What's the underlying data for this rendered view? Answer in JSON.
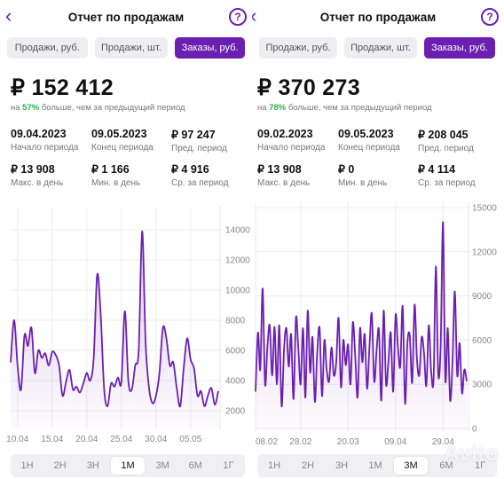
{
  "panels": [
    {
      "title": "Отчет по продажам",
      "back_icon": "chevron-left-icon",
      "help_icon": "question-circle-icon",
      "help_glyph": "?",
      "tabs": [
        {
          "label": "Продажи, руб.",
          "active": false
        },
        {
          "label": "Продажи, шт.",
          "active": false
        },
        {
          "label": "Заказы, руб.",
          "active": true
        }
      ],
      "total": "₽ 152 412",
      "compare_prefix": "на ",
      "compare_pct": "57%",
      "compare_suffix": " больше, чем за предыдущий период",
      "stats": [
        {
          "value": "09.04.2023",
          "label": "Начало периода"
        },
        {
          "value": "09.05.2023",
          "label": "Конец периода"
        },
        {
          "value": "₽  97 247",
          "label": "Пред. период"
        },
        {
          "value": "₽ 13 908",
          "label": "Макс. в день"
        },
        {
          "value": "₽ 1 166",
          "label": "Мин. в день"
        },
        {
          "value": "₽ 4 916",
          "label": "Ср. за период"
        }
      ],
      "periods": [
        {
          "label": "1Н",
          "active": false
        },
        {
          "label": "2Н",
          "active": false
        },
        {
          "label": "3Н",
          "active": false
        },
        {
          "label": "1М",
          "active": true
        },
        {
          "label": "3М",
          "active": false
        },
        {
          "label": "6М",
          "active": false
        },
        {
          "label": "1Г",
          "active": false
        }
      ]
    },
    {
      "title": "Отчет по продажам",
      "back_icon": "chevron-left-icon",
      "help_icon": "question-circle-icon",
      "help_glyph": "?",
      "tabs": [
        {
          "label": "Продажи, руб.",
          "active": false
        },
        {
          "label": "Продажи, шт.",
          "active": false
        },
        {
          "label": "Заказы, руб.",
          "active": true
        }
      ],
      "total": "₽ 370 273",
      "compare_prefix": "на ",
      "compare_pct": "78%",
      "compare_suffix": " больше, чем за предыдущий период",
      "stats": [
        {
          "value": "09.02.2023",
          "label": "Начало периода"
        },
        {
          "value": "09.05.2023",
          "label": "Конец периода"
        },
        {
          "value": "₽  208 045",
          "label": "Пред. период"
        },
        {
          "value": "₽ 13 908",
          "label": "Макс. в день"
        },
        {
          "value": "₽ 0",
          "label": "Мин. в день"
        },
        {
          "value": "₽ 4 114",
          "label": "Ср. за период"
        }
      ],
      "periods": [
        {
          "label": "1Н",
          "active": false
        },
        {
          "label": "2Н",
          "active": false
        },
        {
          "label": "3Н",
          "active": false
        },
        {
          "label": "1М",
          "active": false
        },
        {
          "label": "3М",
          "active": true
        },
        {
          "label": "6М",
          "active": false
        },
        {
          "label": "1Г",
          "active": false
        }
      ]
    }
  ],
  "watermark": "Avito",
  "colors": {
    "accent": "#6b1fb1",
    "positive": "#2bb24c",
    "fill": "#efe7f7"
  },
  "chart_data": [
    {
      "type": "area",
      "ylim": [
        1000,
        15000
      ],
      "yticks": [
        2000,
        4000,
        6000,
        8000,
        10000,
        12000,
        14000
      ],
      "ytick_labels": [
        "2000",
        "4000",
        "6000",
        "8000",
        "10000",
        "12000",
        "14000"
      ],
      "xtick_labels": [
        {
          "label": "10.04",
          "day": 1
        },
        {
          "label": "15.04",
          "day": 6
        },
        {
          "label": "20.04",
          "day": 11
        },
        {
          "label": "25.04",
          "day": 16
        },
        {
          "label": "30.04",
          "day": 21
        },
        {
          "label": "05.05",
          "day": 26
        }
      ],
      "x": [
        0,
        0.5,
        1,
        1.5,
        2,
        2.5,
        3,
        3.5,
        4,
        4.5,
        5,
        5.5,
        6,
        6.5,
        7,
        7.5,
        8,
        8.5,
        9,
        9.5,
        10,
        10.5,
        11,
        11.5,
        12,
        12.5,
        13,
        13.5,
        14,
        14.5,
        15,
        15.5,
        16,
        16.5,
        17,
        17.5,
        18,
        18.5,
        19,
        19.5,
        20,
        20.5,
        21,
        21.5,
        22,
        22.5,
        23,
        23.5,
        24,
        24.5,
        25,
        25.5,
        26,
        26.5,
        27,
        27.5,
        28,
        28.5,
        29,
        29.5,
        30
      ],
      "values": [
        5200,
        8000,
        5000,
        3400,
        7000,
        6300,
        7500,
        4500,
        6000,
        5500,
        5800,
        5000,
        5900,
        5700,
        5000,
        3000,
        3900,
        4700,
        3400,
        3600,
        3200,
        3800,
        4500,
        4000,
        5500,
        11000,
        8500,
        3500,
        2300,
        3800,
        3600,
        4200,
        3900,
        8600,
        4000,
        3400,
        5000,
        6000,
        13900,
        6500,
        3500,
        2500,
        3000,
        4500,
        7500,
        6800,
        5000,
        5200,
        3500,
        2300,
        4800,
        6800,
        5400,
        4800,
        3000,
        3300,
        2300,
        3000,
        3500,
        2400,
        3300
      ],
      "series": [
        {
          "name": "",
          "color": "#6b1fb1"
        }
      ]
    },
    {
      "type": "area",
      "ylim": [
        0,
        15000
      ],
      "yticks": [
        0,
        3000,
        6000,
        9000,
        12000,
        15000
      ],
      "ytick_labels": [
        "0",
        "3000",
        "6000",
        "9000",
        "12000",
        "15000"
      ],
      "xtick_labels": [
        {
          "label": "08.02",
          "day": 0
        },
        {
          "label": "28.02",
          "day": 19
        },
        {
          "label": "20.03",
          "day": 39
        },
        {
          "label": "09.04",
          "day": 59
        },
        {
          "label": "29.04",
          "day": 79
        }
      ],
      "x": [
        0,
        1,
        2,
        3,
        4,
        5,
        6,
        7,
        8,
        9,
        10,
        11,
        12,
        13,
        14,
        15,
        16,
        17,
        18,
        19,
        20,
        21,
        22,
        23,
        24,
        25,
        26,
        27,
        28,
        29,
        30,
        31,
        32,
        33,
        34,
        35,
        36,
        37,
        38,
        39,
        40,
        41,
        42,
        43,
        44,
        45,
        46,
        47,
        48,
        49,
        50,
        51,
        52,
        53,
        54,
        55,
        56,
        57,
        58,
        59,
        60,
        61,
        62,
        63,
        64,
        65,
        66,
        67,
        68,
        69,
        70,
        71,
        72,
        73,
        74,
        75,
        76,
        77,
        78,
        79,
        80,
        81,
        82,
        83,
        84,
        85,
        86,
        87,
        88,
        89
      ],
      "values": [
        2500,
        6500,
        4000,
        9500,
        3000,
        5600,
        7000,
        3600,
        6900,
        3000,
        7000,
        1500,
        5400,
        6800,
        4200,
        6400,
        2000,
        7500,
        5600,
        3000,
        6800,
        2100,
        8000,
        3800,
        6200,
        1800,
        5200,
        6800,
        2200,
        6000,
        4000,
        3200,
        5500,
        3600,
        4500,
        7500,
        2800,
        6000,
        4300,
        5700,
        3000,
        7200,
        5000,
        2100,
        6800,
        4500,
        6400,
        2700,
        5600,
        7800,
        3200,
        5300,
        6700,
        1900,
        8000,
        3000,
        4600,
        6500,
        2500,
        7700,
        5600,
        4200,
        8300,
        1700,
        5800,
        6300,
        3100,
        8400,
        4800,
        3600,
        6200,
        5100,
        2900,
        7000,
        3900,
        3300,
        11000,
        3700,
        5600,
        14000,
        3300,
        6800,
        1900,
        4600,
        9300,
        3600,
        5800,
        2400,
        4000,
        3200
      ],
      "series": [
        {
          "name": "",
          "color": "#6b1fb1"
        }
      ]
    }
  ]
}
